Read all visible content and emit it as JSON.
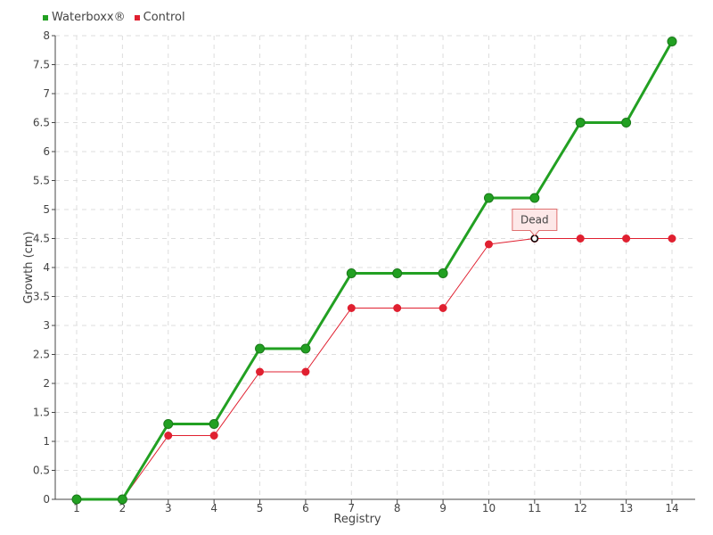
{
  "chart_data": {
    "type": "line",
    "x": [
      1,
      2,
      3,
      4,
      5,
      6,
      7,
      8,
      9,
      10,
      11,
      12,
      13,
      14
    ],
    "xlabel": "Registry",
    "ylabel": "Growth (cm)",
    "ylim": [
      0,
      8
    ],
    "yticks": [
      0,
      0.5,
      1,
      1.5,
      2,
      2.5,
      3,
      3.5,
      4,
      4.5,
      5,
      5.5,
      6,
      6.5,
      7,
      7.5,
      8
    ],
    "yticklabels": [
      "0",
      "0.5",
      "1",
      "1.5",
      "2",
      "2.5",
      "3",
      "3.5",
      "4",
      "4.5",
      "5",
      "5.5",
      "6",
      "6.5",
      "7",
      "7.5",
      "8"
    ],
    "grid": true,
    "legend_position": "top-left",
    "series": [
      {
        "name": "Waterboxx®",
        "color": "#22a022",
        "values": [
          0,
          0,
          1.3,
          1.3,
          2.6,
          2.6,
          3.9,
          3.9,
          3.9,
          5.2,
          5.2,
          6.5,
          6.5,
          7.9
        ]
      },
      {
        "name": "Control",
        "color": "#e02030",
        "values": [
          0,
          0,
          1.1,
          1.1,
          2.2,
          2.2,
          3.3,
          3.3,
          3.3,
          4.4,
          4.5,
          4.5,
          4.5,
          4.5
        ]
      }
    ],
    "annotation": {
      "text": "Dead",
      "x": 11,
      "y": 4.5,
      "series": "Control"
    }
  }
}
